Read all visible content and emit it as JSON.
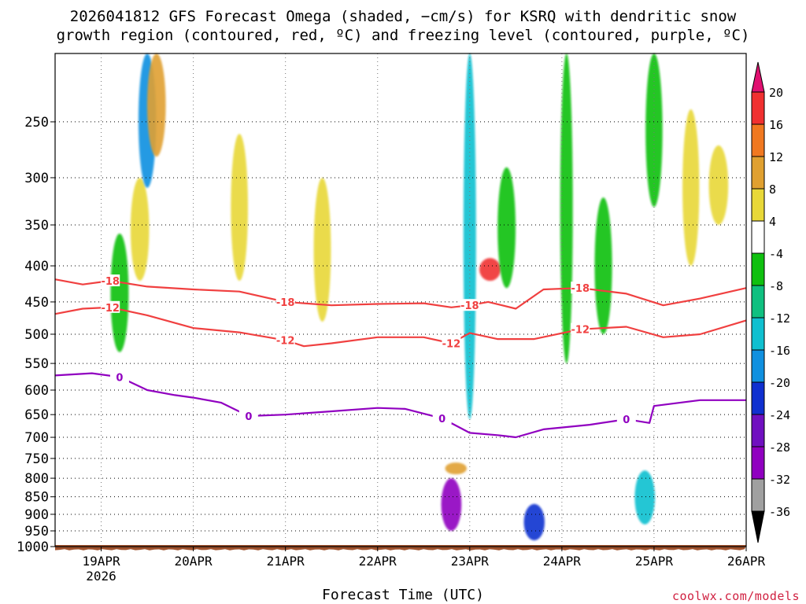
{
  "title": {
    "line1": "2026041812 GFS Forecast Omega (shaded, −cm/s) for KSRQ with dendritic snow",
    "line2": "growth region (contoured, red, ºC) and freezing level (contoured, purple, ºC)"
  },
  "xlabel": "Forecast Time (UTC)",
  "credit": "coolwx.com/models",
  "colors": {
    "temp_contour": "#f04040",
    "freezing_contour": "#9000c0",
    "ground": "#a0522d",
    "grid": "#000000"
  },
  "chart_data": {
    "type": "heatmap",
    "title": "2026041812 GFS Forecast Omega (shaded, −cm/s) for KSRQ with dendritic snow growth region (contoured, red, ºC) and freezing level (contoured, purple, ºC)",
    "xlabel": "Forecast Time (UTC)",
    "ylabel": "Pressure (hPa)",
    "x_range_days": [
      18.5,
      26.0
    ],
    "y_range_hpa": [
      200,
      1000
    ],
    "x_ticks": [
      {
        "day": 19,
        "label": "19APR",
        "sublabel": "2026"
      },
      {
        "day": 20,
        "label": "20APR"
      },
      {
        "day": 21,
        "label": "21APR"
      },
      {
        "day": 22,
        "label": "22APR"
      },
      {
        "day": 23,
        "label": "23APR"
      },
      {
        "day": 24,
        "label": "24APR"
      },
      {
        "day": 25,
        "label": "25APR"
      },
      {
        "day": 26,
        "label": "26APR"
      }
    ],
    "y_ticks": [
      250,
      300,
      350,
      400,
      450,
      500,
      550,
      600,
      650,
      700,
      750,
      800,
      850,
      900,
      950,
      1000
    ],
    "colorbar": {
      "levels": [
        -36,
        -32,
        -28,
        -24,
        -20,
        -16,
        -12,
        -8,
        -4,
        4,
        8,
        12,
        16,
        20
      ],
      "labels": [
        "20",
        "16",
        "12",
        "8",
        "4",
        "-4",
        "-8",
        "-12",
        "-16",
        "-20",
        "-24",
        "-28",
        "-32",
        "-36"
      ],
      "colors_top_to_bottom": [
        "#e01070",
        "#f03030",
        "#f07820",
        "#e0a030",
        "#e8d838",
        "#ffffff",
        "#10c010",
        "#10c080",
        "#10c0d0",
        "#1090e0",
        "#1030d0",
        "#7010c0",
        "#9000c0",
        "#a0a0a0",
        "#000000"
      ]
    },
    "contours": [
      {
        "name": "-18ºC",
        "label": "-18",
        "color": "#f04040",
        "x": [
          18.5,
          18.8,
          19.1,
          19.5,
          20.0,
          20.5,
          21.0,
          21.5,
          22.0,
          22.5,
          22.8,
          23.0,
          23.2,
          23.5,
          23.8,
          24.2,
          24.7,
          25.1,
          25.5,
          26.0
        ],
        "y": [
          418,
          425,
          420,
          428,
          432,
          435,
          450,
          455,
          453,
          452,
          458,
          455,
          450,
          460,
          432,
          430,
          438,
          455,
          445,
          430
        ]
      },
      {
        "name": "-12ºC",
        "label": "-12",
        "color": "#f04040",
        "x": [
          18.5,
          18.8,
          19.1,
          19.5,
          20.0,
          20.5,
          21.0,
          21.2,
          21.5,
          22.0,
          22.5,
          22.8,
          23.0,
          23.3,
          23.7,
          24.2,
          24.7,
          25.1,
          25.5,
          26.0
        ],
        "y": [
          468,
          460,
          458,
          470,
          490,
          497,
          510,
          520,
          515,
          505,
          505,
          515,
          498,
          508,
          508,
          492,
          488,
          505,
          500,
          478
        ]
      },
      {
        "name": "0ºC freezing level",
        "label": "0",
        "color": "#9000c0",
        "x": [
          18.5,
          18.9,
          19.2,
          19.5,
          19.8,
          20.0,
          20.3,
          20.6,
          21.0,
          21.5,
          22.0,
          22.3,
          22.7,
          23.0,
          23.3,
          23.5,
          23.8,
          24.3,
          24.7,
          24.95,
          25.0,
          25.5,
          26.0
        ],
        "y": [
          572,
          568,
          575,
          600,
          610,
          615,
          625,
          653,
          650,
          643,
          636,
          638,
          658,
          690,
          695,
          700,
          682,
          672,
          660,
          668,
          632,
          620,
          620
        ]
      }
    ],
    "shading": [
      {
        "x": 19.2,
        "p": [
          360,
          530
        ],
        "value": -8
      },
      {
        "x": 19.42,
        "p": [
          300,
          420
        ],
        "value": 6
      },
      {
        "x": 19.5,
        "p": [
          200,
          310
        ],
        "value": -18
      },
      {
        "x": 19.6,
        "p": [
          200,
          280
        ],
        "value": 10
      },
      {
        "x": 20.5,
        "p": [
          260,
          420
        ],
        "value": 6
      },
      {
        "x": 21.4,
        "p": [
          300,
          480
        ],
        "value": 5
      },
      {
        "x": 22.3,
        "p": [
          430,
          480
        ],
        "value": -4
      },
      {
        "x": 22.8,
        "p": [
          800,
          950
        ],
        "value": -30
      },
      {
        "x": 22.85,
        "p": [
          760,
          790
        ],
        "value": 8
      },
      {
        "x": 23.0,
        "p": [
          200,
          660
        ],
        "value": -14
      },
      {
        "x": 23.22,
        "p": [
          390,
          420
        ],
        "value": 16
      },
      {
        "x": 23.4,
        "p": [
          290,
          430
        ],
        "value": -6
      },
      {
        "x": 23.7,
        "p": [
          870,
          980
        ],
        "value": -22
      },
      {
        "x": 24.05,
        "p": [
          200,
          550
        ],
        "value": -6
      },
      {
        "x": 24.45,
        "p": [
          320,
          500
        ],
        "value": -8
      },
      {
        "x": 24.9,
        "p": [
          780,
          930
        ],
        "value": -14
      },
      {
        "x": 25.0,
        "p": [
          200,
          330
        ],
        "value": -6
      },
      {
        "x": 25.4,
        "p": [
          240,
          400
        ],
        "value": 5
      },
      {
        "x": 25.7,
        "p": [
          270,
          350
        ],
        "value": 5
      }
    ]
  }
}
